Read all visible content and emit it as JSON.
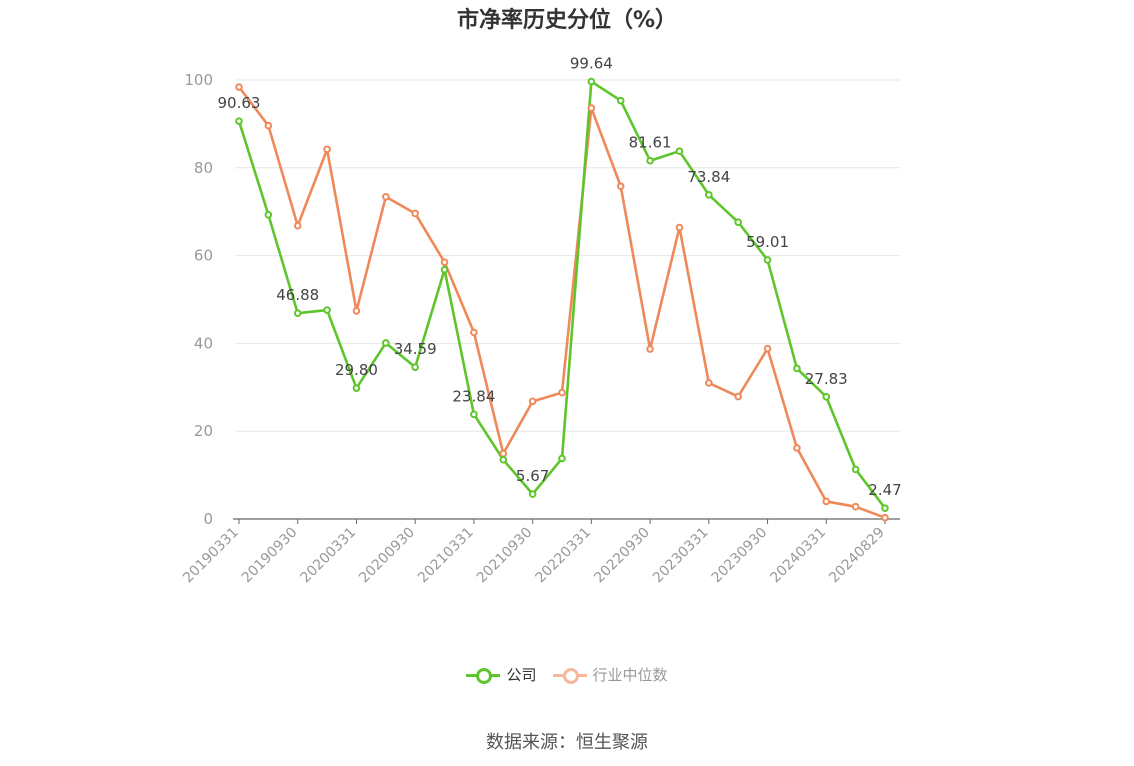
{
  "chart_data": {
    "type": "line",
    "title": "市净率历史分位（%）",
    "source": "数据来源：恒生聚源",
    "ylim": [
      0,
      100
    ],
    "yticks": [
      0,
      20,
      40,
      60,
      80,
      100
    ],
    "grid": true,
    "legend_position": "bottom",
    "x": [
      "20190331",
      "20190630",
      "20190930",
      "20191231",
      "20200331",
      "20200630",
      "20200930",
      "20201231",
      "20210331",
      "20210630",
      "20210930",
      "20211231",
      "20220331",
      "20220630",
      "20220930",
      "20221231",
      "20230331",
      "20230630",
      "20230930",
      "20231231",
      "20240331",
      "20240630",
      "20240829"
    ],
    "xtick_labels": [
      "20190331",
      "20190930",
      "20200331",
      "20200930",
      "20210331",
      "20210930",
      "20220331",
      "20220930",
      "20230331",
      "20230930",
      "20240331",
      "20240829"
    ],
    "series": [
      {
        "name": "公司",
        "color": "#5ec52b",
        "values": [
          90.63,
          69.3,
          46.88,
          47.6,
          29.8,
          40.1,
          34.59,
          56.8,
          23.84,
          13.5,
          5.67,
          13.8,
          99.64,
          95.3,
          81.61,
          83.8,
          73.84,
          67.6,
          59.01,
          34.3,
          27.83,
          11.3,
          2.47
        ],
        "data_labels": {
          "0": "90.63",
          "2": "46.88",
          "4": "29.80",
          "6": "34.59",
          "8": "23.84",
          "10": "5.67",
          "12": "99.64",
          "14": "81.61",
          "16": "73.84",
          "18": "59.01",
          "20": "27.83",
          "22": "2.47"
        }
      },
      {
        "name": "行业中位数",
        "color": "#f0895a",
        "values": [
          98.4,
          89.6,
          66.8,
          84.2,
          47.4,
          73.4,
          69.6,
          58.5,
          42.5,
          14.9,
          26.8,
          28.8,
          93.6,
          75.8,
          38.7,
          66.4,
          31.0,
          27.9,
          38.8,
          16.2,
          4.0,
          2.8,
          0.3
        ]
      }
    ]
  }
}
